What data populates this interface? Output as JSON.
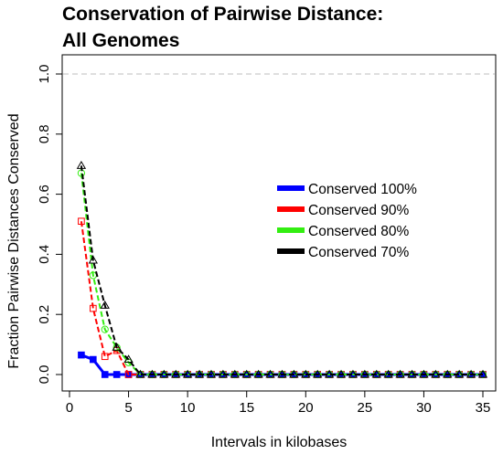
{
  "chart_data": {
    "type": "line",
    "title": [
      "Conservation of Pairwise Distance:",
      "All Genomes"
    ],
    "xlabel": "Intervals in kilobases",
    "ylabel": "Fraction Pairwise Distances Conserved",
    "xlim": [
      0,
      35
    ],
    "ylim": [
      0,
      1.0
    ],
    "xticks": [
      0,
      5,
      10,
      15,
      20,
      25,
      30,
      35
    ],
    "yticks": [
      "0.0",
      "0.2",
      "0.4",
      "0.6",
      "0.8",
      "1.0"
    ],
    "reference_line": 1.0,
    "legend_position": "right",
    "x": [
      1,
      2,
      3,
      4,
      5,
      6,
      7,
      8,
      9,
      10,
      11,
      12,
      13,
      14,
      15,
      16,
      17,
      18,
      19,
      20,
      21,
      22,
      23,
      24,
      25,
      26,
      27,
      28,
      29,
      30,
      31,
      32,
      33,
      34,
      35
    ],
    "series": [
      {
        "name": "Conserved 100%",
        "color": "#0000ff",
        "line": "solid",
        "marker": "filled-square",
        "values": [
          0.065,
          0.05,
          0.0,
          0.0,
          0.0,
          0,
          0,
          0,
          0,
          0,
          0,
          0,
          0,
          0,
          0,
          0,
          0,
          0,
          0,
          0,
          0,
          0,
          0,
          0,
          0,
          0,
          0,
          0,
          0,
          0,
          0,
          0,
          0,
          0,
          0
        ]
      },
      {
        "name": "Conserved 90%",
        "color": "#ff0000",
        "line": "dashed",
        "marker": "open-square",
        "values": [
          0.51,
          0.22,
          0.06,
          0.08,
          0.0,
          0,
          0,
          0,
          0,
          0,
          0,
          0,
          0,
          0,
          0,
          0,
          0,
          0,
          0,
          0,
          0,
          0,
          0,
          0,
          0,
          0,
          0,
          0,
          0,
          0,
          0,
          0,
          0,
          0,
          0
        ]
      },
      {
        "name": "Conserved 80%",
        "color": "#33ee11",
        "line": "dashed",
        "marker": "open-circle",
        "values": [
          0.67,
          0.33,
          0.15,
          0.09,
          0.04,
          0,
          0,
          0,
          0,
          0,
          0,
          0,
          0,
          0,
          0,
          0,
          0,
          0,
          0,
          0,
          0,
          0,
          0,
          0,
          0,
          0,
          0,
          0,
          0,
          0,
          0,
          0,
          0,
          0,
          0
        ]
      },
      {
        "name": "Conserved 70%",
        "color": "#000000",
        "line": "dashed",
        "marker": "open-triangle",
        "values": [
          0.695,
          0.38,
          0.23,
          0.09,
          0.05,
          0,
          0,
          0,
          0,
          0,
          0,
          0,
          0,
          0,
          0,
          0,
          0,
          0,
          0,
          0,
          0,
          0,
          0,
          0,
          0,
          0,
          0,
          0,
          0,
          0,
          0,
          0,
          0,
          0,
          0
        ]
      }
    ]
  }
}
